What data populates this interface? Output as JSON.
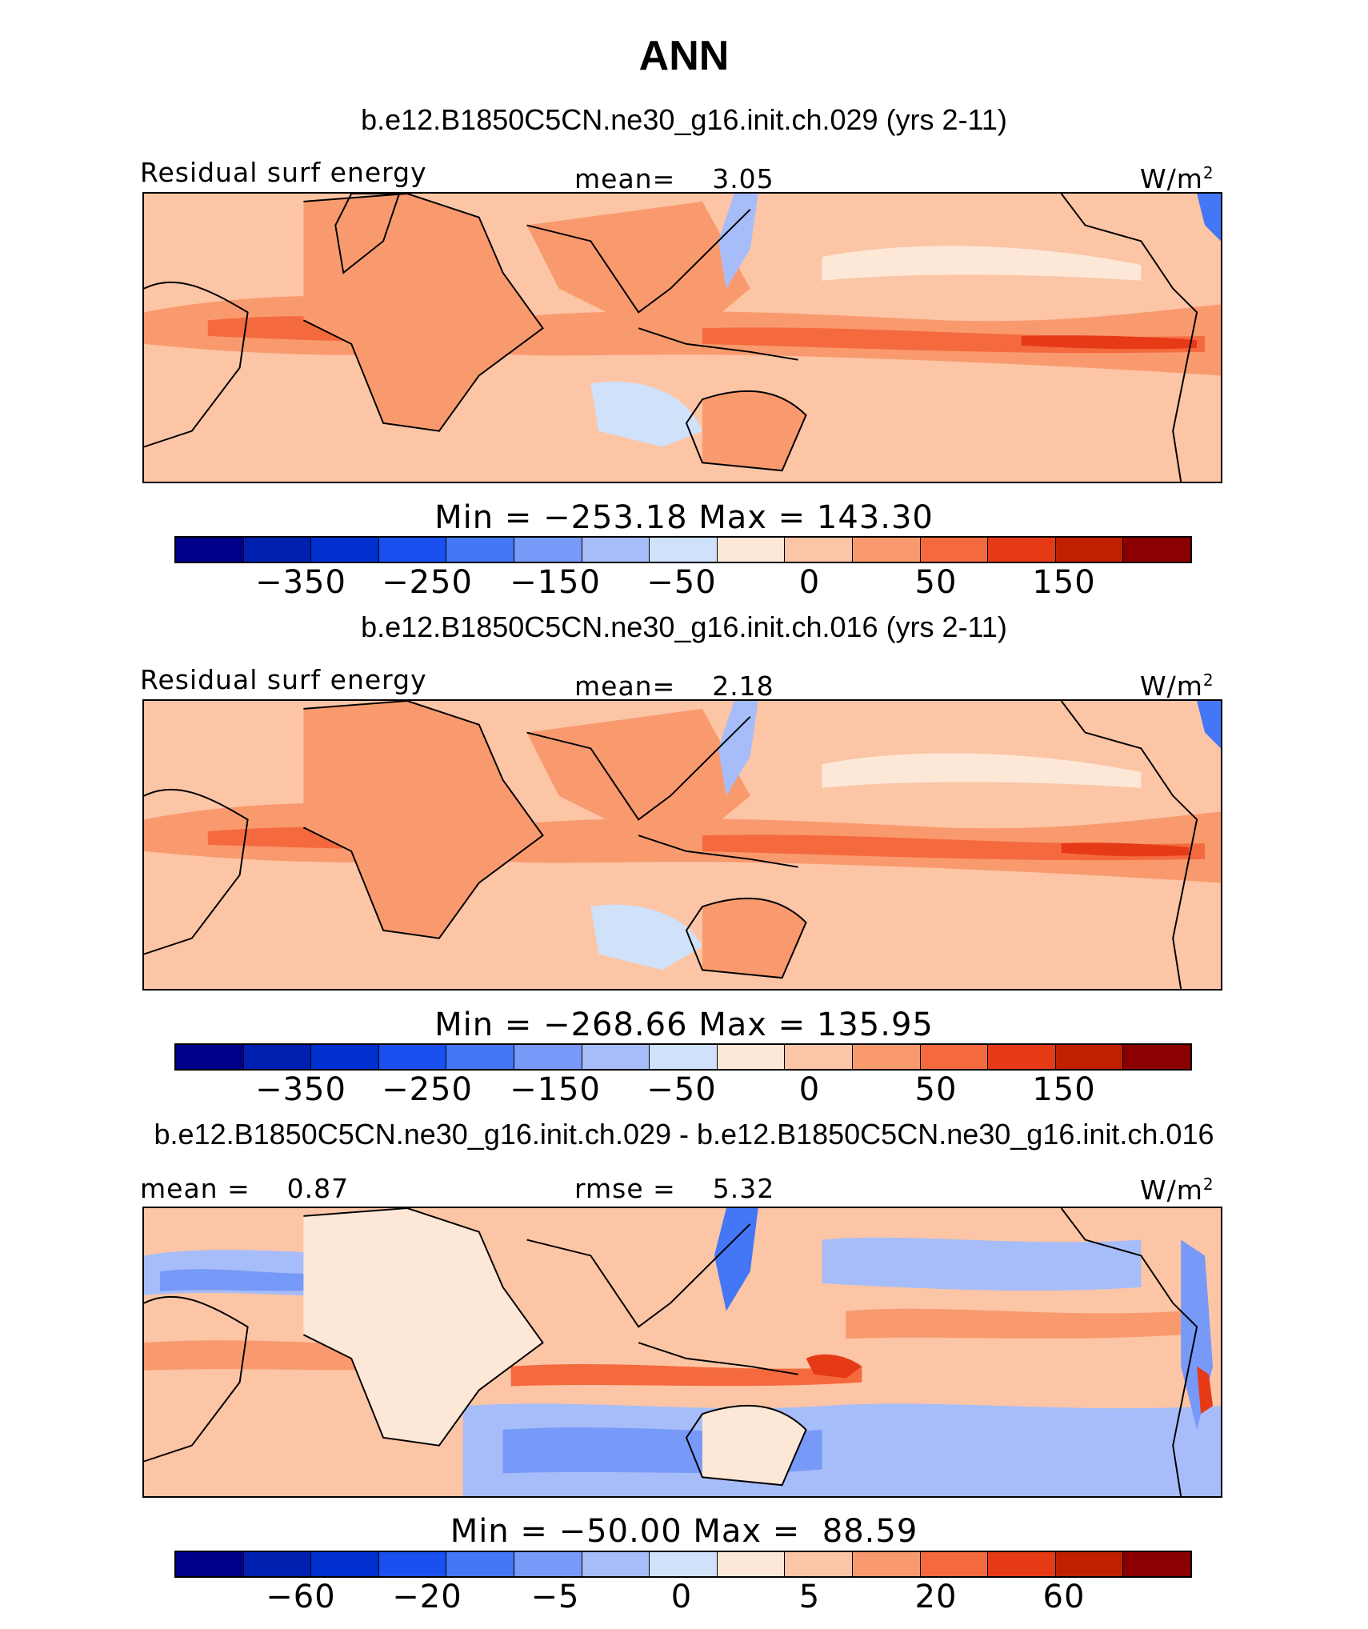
{
  "main_title": "ANN",
  "colors": {
    "ramp": [
      "#00008b",
      "#0020b0",
      "#0030d0",
      "#1a50f0",
      "#4477f5",
      "#7799f8",
      "#a6bdf9",
      "#d0e1fa",
      "#fde8d8",
      "#fcc5a6",
      "#f99a6e",
      "#f46a3e",
      "#e63a17",
      "#c02000",
      "#8b0000"
    ]
  },
  "panels": [
    {
      "case_title": "b.e12.B1850C5CN.ne30_g16.init.ch.029 (yrs 2-11)",
      "left_label": "Residual surf energy",
      "center_label": "mean=    3.05",
      "units_base": "W/m",
      "units_sup": "2",
      "minmax": "Min = −253.18 Max = 143.30",
      "colorbar_ticks": [
        "−350",
        "−250",
        "−150",
        "−50",
        "0",
        "50",
        "150"
      ]
    },
    {
      "case_title": "b.e12.B1850C5CN.ne30_g16.init.ch.016 (yrs 2-11)",
      "left_label": "Residual surf energy",
      "center_label": "mean=    2.18",
      "units_base": "W/m",
      "units_sup": "2",
      "minmax": "Min = −268.66 Max = 135.95",
      "colorbar_ticks": [
        "−350",
        "−250",
        "−150",
        "−50",
        "0",
        "50",
        "150"
      ]
    },
    {
      "case_title": "b.e12.B1850C5CN.ne30_g16.init.ch.029 - b.e12.B1850C5CN.ne30_g16.init.ch.016",
      "left_label": "mean =    0.87",
      "center_label": "rmse =    5.32",
      "units_base": "W/m",
      "units_sup": "2",
      "minmax": "Min = −50.00 Max =  88.59",
      "colorbar_ticks": [
        "−60",
        "−20",
        "−5",
        "0",
        "5",
        "20",
        "60"
      ]
    }
  ]
}
